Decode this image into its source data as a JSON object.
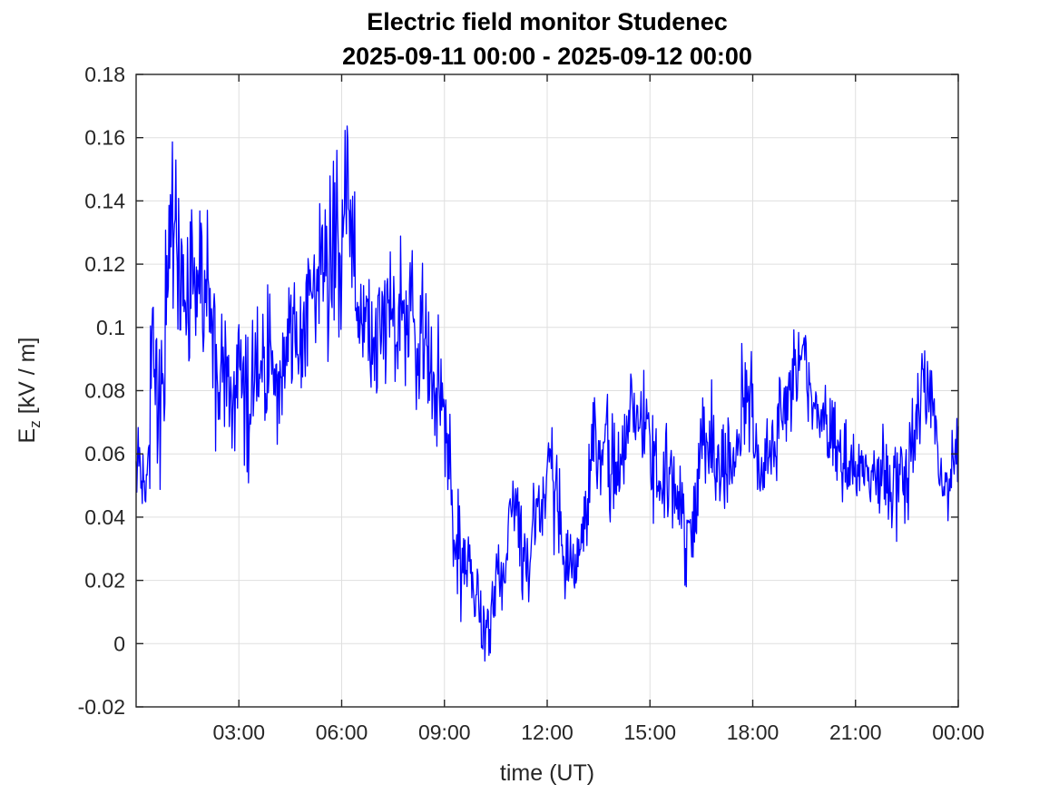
{
  "chart_data": {
    "type": "line",
    "title": "Electric field monitor Studenec",
    "subtitle": "2025-09-11 00:00 - 2025-09-12 00:00",
    "xlabel": "time (UT)",
    "ylabel": "E_z [kV / m]",
    "ylabel_parts": {
      "symbol": "E",
      "subscript": "z",
      "units": " [kV / m]"
    },
    "xlim_hours": [
      0,
      24
    ],
    "ylim": [
      -0.02,
      0.18
    ],
    "x_ticks": [
      3,
      6,
      9,
      12,
      15,
      18,
      21,
      24
    ],
    "x_ticklabels": [
      "03:00",
      "06:00",
      "09:00",
      "12:00",
      "15:00",
      "18:00",
      "21:00",
      "00:00"
    ],
    "y_ticks": [
      -0.02,
      0,
      0.02,
      0.04,
      0.06,
      0.08,
      0.1,
      0.12,
      0.14,
      0.16,
      0.18
    ],
    "y_ticklabels": [
      "-0.02",
      "0",
      "0.02",
      "0.04",
      "0.06",
      "0.08",
      "0.1",
      "0.12",
      "0.14",
      "0.16",
      "0.18"
    ],
    "grid": true,
    "grid_color": "#dfdfdf",
    "axis_color": "#262626",
    "background": "#ffffff",
    "series": [
      {
        "name": "Ez",
        "color": "#0000ff",
        "style": "noisy-line",
        "estimated": true,
        "t_hours": [
          0,
          0.3,
          0.45,
          0.6,
          0.8,
          1,
          1.1,
          1.3,
          1.5,
          1.75,
          2,
          2.2,
          2.4,
          2.6,
          2.8,
          3.05,
          3.3,
          3.6,
          3.9,
          4.2,
          4.5,
          4.8,
          5.1,
          5.4,
          5.7,
          5.9,
          6,
          6.2,
          6.5,
          6.8,
          7.1,
          7.4,
          7.6,
          7.9,
          8.1,
          8.4,
          8.7,
          9,
          9.2,
          9.5,
          9.8,
          10.1,
          10.3,
          10.6,
          10.9,
          11.1,
          11.35,
          11.6,
          11.9,
          12.2,
          12.5,
          12.75,
          13,
          13.3,
          13.6,
          14,
          14.3,
          14.6,
          15,
          15.3,
          15.6,
          16,
          16.3,
          16.6,
          17,
          17.25,
          17.5,
          17.8,
          18.1,
          18.4,
          18.7,
          19,
          19.3,
          19.55,
          19.8,
          20.1,
          20.4,
          20.7,
          21,
          21.3,
          21.6,
          21.9,
          22.1,
          22.35,
          22.6,
          22.9,
          23.2,
          23.45,
          23.7,
          24
        ],
        "mid": [
          0.066,
          0.058,
          0.095,
          0.088,
          0.095,
          0.135,
          0.125,
          0.1,
          0.105,
          0.112,
          0.118,
          0.112,
          0.092,
          0.088,
          0.086,
          0.092,
          0.085,
          0.083,
          0.086,
          0.084,
          0.086,
          0.09,
          0.1,
          0.112,
          0.133,
          0.14,
          0.135,
          0.122,
          0.11,
          0.1,
          0.1,
          0.11,
          0.118,
          0.115,
          0.112,
          0.095,
          0.075,
          0.062,
          0.05,
          0.025,
          0.019,
          0.016,
          0.009,
          0.02,
          0.036,
          0.048,
          0.03,
          0.042,
          0.042,
          0.046,
          0.035,
          0.022,
          0.026,
          0.046,
          0.06,
          0.064,
          0.059,
          0.068,
          0.064,
          0.059,
          0.051,
          0.041,
          0.05,
          0.056,
          0.05,
          0.047,
          0.056,
          0.064,
          0.066,
          0.07,
          0.071,
          0.075,
          0.083,
          0.086,
          0.076,
          0.066,
          0.061,
          0.056,
          0.056,
          0.051,
          0.048,
          0.05,
          0.057,
          0.061,
          0.06,
          0.066,
          0.074,
          0.061,
          0.062,
          0.067
        ],
        "spread": [
          0.016,
          0.014,
          0.038,
          0.028,
          0.03,
          0.044,
          0.04,
          0.028,
          0.026,
          0.03,
          0.033,
          0.034,
          0.028,
          0.028,
          0.028,
          0.033,
          0.026,
          0.026,
          0.027,
          0.026,
          0.022,
          0.022,
          0.024,
          0.03,
          0.038,
          0.04,
          0.036,
          0.032,
          0.023,
          0.022,
          0.024,
          0.027,
          0.03,
          0.028,
          0.025,
          0.024,
          0.025,
          0.024,
          0.024,
          0.018,
          0.015,
          0.015,
          0.014,
          0.013,
          0.019,
          0.018,
          0.024,
          0.016,
          0.015,
          0.024,
          0.018,
          0.013,
          0.017,
          0.021,
          0.024,
          0.024,
          0.021,
          0.02,
          0.021,
          0.019,
          0.019,
          0.016,
          0.019,
          0.019,
          0.021,
          0.019,
          0.019,
          0.021,
          0.021,
          0.021,
          0.019,
          0.019,
          0.017,
          0.017,
          0.017,
          0.017,
          0.017,
          0.017,
          0.017,
          0.015,
          0.015,
          0.015,
          0.022,
          0.019,
          0.019,
          0.019,
          0.017,
          0.017,
          0.017,
          0.014
        ],
        "observed_max": 0.179,
        "observed_max_t_hours": 5.95,
        "observed_min": -0.006,
        "observed_min_t_hours": 10.3
      }
    ]
  }
}
